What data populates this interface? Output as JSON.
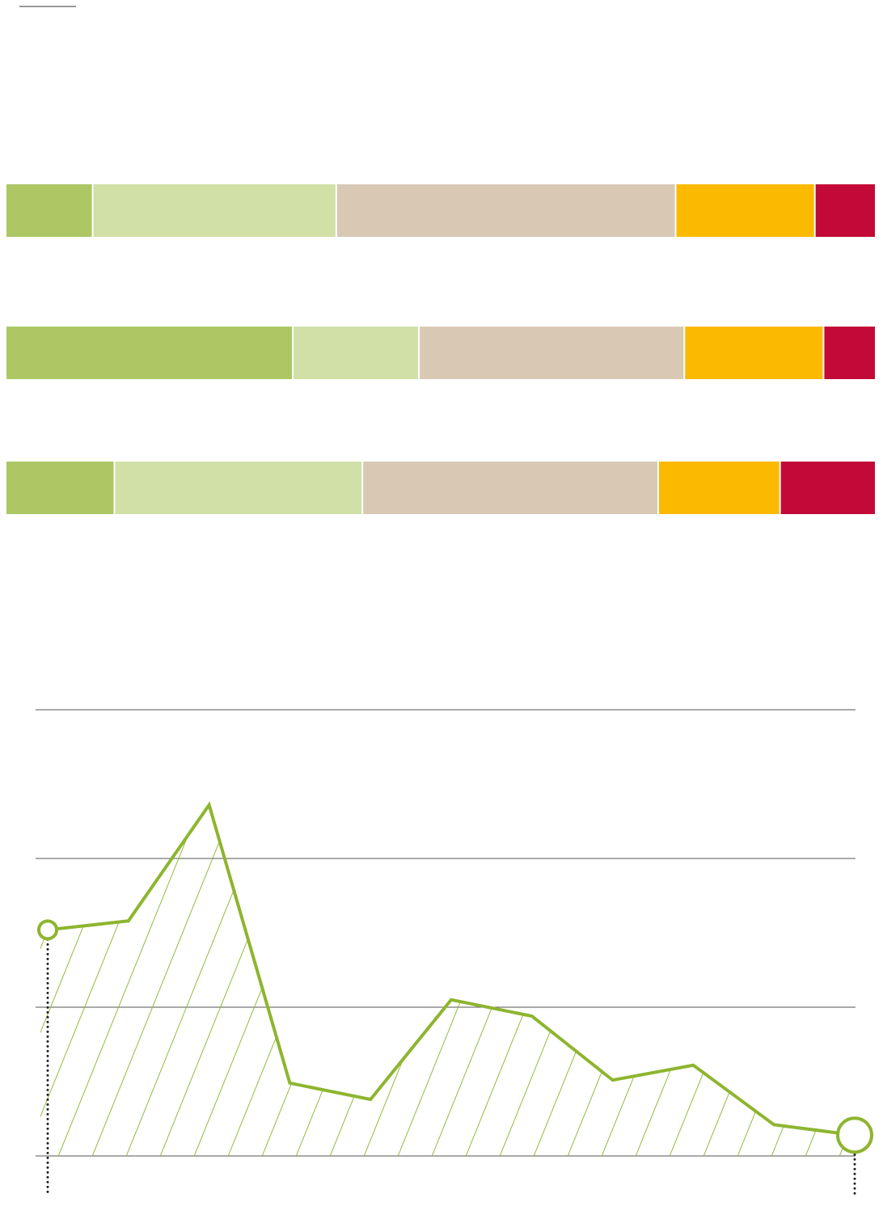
{
  "chart_data": [
    {
      "type": "stacked_bar",
      "orientation": "horizontal",
      "categories": [
        null,
        null,
        null
      ],
      "series": [
        {
          "color": "#acc764",
          "values": [
            10,
            33,
            12.5
          ]
        },
        {
          "color": "#d0e0a6",
          "values": [
            28,
            14.5,
            28.5
          ]
        },
        {
          "color": "#d8c8b4",
          "values": [
            39,
            30.5,
            34
          ]
        },
        {
          "color": "#fbb900",
          "values": [
            16,
            16,
            14
          ]
        },
        {
          "color": "#c30937",
          "values": [
            7,
            6,
            11
          ]
        }
      ],
      "xlim": [
        0,
        100
      ]
    },
    {
      "type": "area",
      "categories": [
        null,
        null,
        null,
        null,
        null,
        null,
        null,
        null,
        null,
        null,
        null
      ],
      "series": [
        {
          "color": "#8db52f",
          "values": [
            1.52,
            1.58,
            2.36,
            0.49,
            0.38,
            1.05,
            0.94,
            0.51,
            0.61,
            0.21,
            0.14
          ]
        }
      ],
      "ylim": [
        0,
        3
      ],
      "yticks": [
        0,
        1,
        2,
        3
      ],
      "grid": true,
      "fill": "hatch"
    }
  ]
}
